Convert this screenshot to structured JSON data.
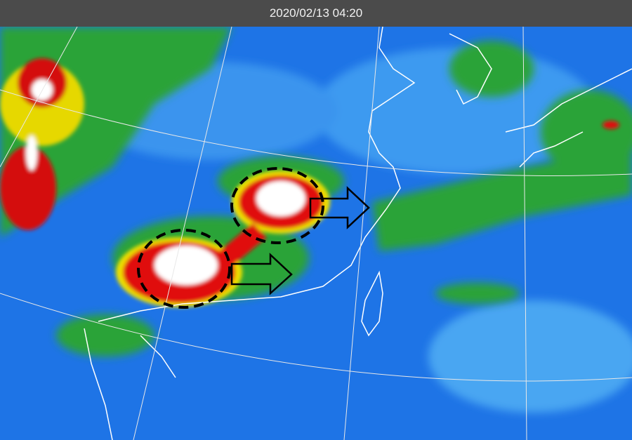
{
  "header": {
    "timestamp": "2020/02/13 04:20"
  },
  "colors": {
    "ocean": "#1f78e8",
    "low_cloud": "#5ab4f5",
    "mid_cloud": "#2fa83a",
    "high_cloud": "#f2e600",
    "very_high_cloud": "#e01010",
    "top_cloud": "#ffffff",
    "header": "#4b4b4b"
  },
  "annotations": [
    {
      "type": "dashed-circle",
      "label": "western convective cluster"
    },
    {
      "type": "dashed-circle",
      "label": "eastern convective cluster"
    },
    {
      "type": "arrow",
      "direction": "east"
    },
    {
      "type": "arrow",
      "direction": "east"
    }
  ]
}
